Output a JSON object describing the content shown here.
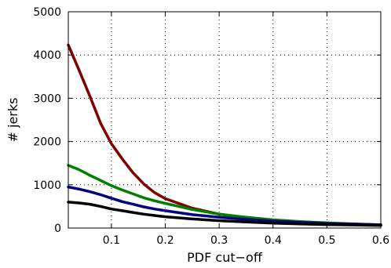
{
  "chart_data": {
    "type": "line",
    "title": "",
    "xlabel": "PDF cut−off",
    "ylabel": "# jerks",
    "xlim": [
      0.02,
      0.6
    ],
    "ylim": [
      0,
      5000
    ],
    "grid": true,
    "xticks": [
      0.1,
      0.2,
      0.3,
      0.4,
      0.5,
      0.6
    ],
    "xtick_labels": [
      "0.1",
      "0.2",
      "0.3",
      "0.4",
      "0.5",
      "0.6"
    ],
    "yticks": [
      0,
      1000,
      2000,
      3000,
      4000,
      5000
    ],
    "ytick_labels": [
      "0",
      "1000",
      "2000",
      "3000",
      "4000",
      "5000"
    ],
    "x": [
      0.02,
      0.04,
      0.06,
      0.08,
      0.1,
      0.12,
      0.14,
      0.16,
      0.18,
      0.2,
      0.25,
      0.3,
      0.35,
      0.4,
      0.45,
      0.5,
      0.55,
      0.6
    ],
    "series": [
      {
        "color": "#800000",
        "values": [
          4230,
          3650,
          3050,
          2420,
          1950,
          1600,
          1280,
          1020,
          820,
          680,
          460,
          320,
          240,
          180,
          140,
          110,
          90,
          70
        ]
      },
      {
        "color": "#008000",
        "values": [
          1450,
          1350,
          1220,
          1100,
          980,
          880,
          790,
          700,
          630,
          570,
          430,
          320,
          250,
          190,
          150,
          120,
          95,
          75
        ]
      },
      {
        "color": "#000080",
        "values": [
          950,
          900,
          840,
          770,
          690,
          610,
          550,
          490,
          440,
          400,
          310,
          250,
          200,
          160,
          130,
          105,
          90,
          75
        ]
      },
      {
        "color": "#000000",
        "values": [
          600,
          580,
          550,
          500,
          440,
          400,
          360,
          320,
          290,
          260,
          210,
          170,
          140,
          115,
          95,
          80,
          70,
          60
        ]
      }
    ]
  }
}
